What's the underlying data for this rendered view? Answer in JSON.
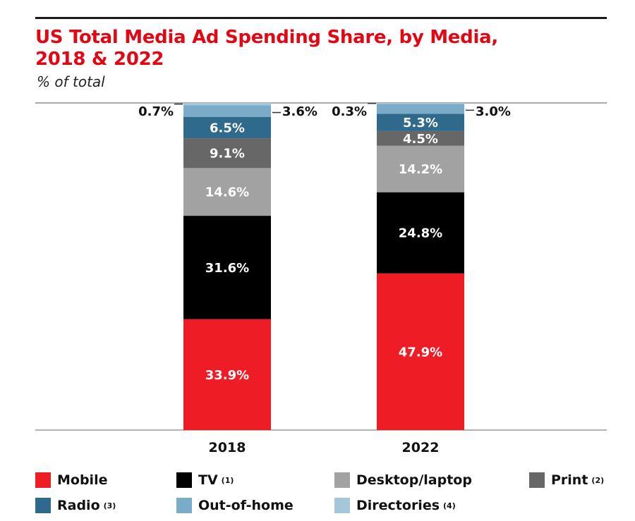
{
  "header": {
    "title_line1": "US Total Media Ad Spending Share, by Media,",
    "title_line2": "2018 & 2022",
    "subtitle": "% of total"
  },
  "chart_data": {
    "type": "bar",
    "stacked": true,
    "title": "US Total Media Ad Spending Share, by Media, 2018 & 2022",
    "subtitle": "% of total",
    "categories": [
      "2018",
      "2022"
    ],
    "ylim": [
      0,
      100
    ],
    "grid": false,
    "legend_position": "bottom",
    "series": [
      {
        "name": "Mobile",
        "values": [
          33.9,
          47.9
        ],
        "color": "#ee1c25",
        "labels": [
          "33.9%",
          "47.9%"
        ]
      },
      {
        "name": "TV",
        "values": [
          31.6,
          24.8
        ],
        "color": "#000000",
        "labels": [
          "31.6%",
          "24.8%"
        ]
      },
      {
        "name": "Desktop/laptop",
        "values": [
          14.6,
          14.2
        ],
        "color": "#a2a2a2",
        "labels": [
          "14.6%",
          "14.2%"
        ]
      },
      {
        "name": "Print",
        "values": [
          9.1,
          4.5
        ],
        "color": "#676767",
        "labels": [
          "9.1%",
          "4.5%"
        ]
      },
      {
        "name": "Radio",
        "values": [
          6.5,
          5.3
        ],
        "color": "#2f6a8c",
        "labels": [
          "6.5%",
          "5.3%"
        ]
      },
      {
        "name": "Out-of-home",
        "values": [
          3.6,
          3.0
        ],
        "color": "#7aabc9",
        "labels": [
          "3.6%",
          "3.0%"
        ]
      },
      {
        "name": "Directories",
        "values": [
          0.7,
          0.3
        ],
        "color": "#a5c8d8",
        "labels": [
          "0.7%",
          "0.3%"
        ]
      }
    ]
  },
  "legend": [
    {
      "label": "Mobile",
      "note": "",
      "color": "#ee1c25"
    },
    {
      "label": "TV",
      "note": "(1)",
      "color": "#000000"
    },
    {
      "label": "Desktop/laptop",
      "note": "",
      "color": "#a2a2a2"
    },
    {
      "label": "Print",
      "note": "(2)",
      "color": "#676767"
    },
    {
      "label": "Radio",
      "note": "(3)",
      "color": "#2f6a8c"
    },
    {
      "label": "Out-of-home",
      "note": "",
      "color": "#7aabc9"
    },
    {
      "label": "Directories",
      "note": "(4)",
      "color": "#a5c8d8"
    }
  ]
}
